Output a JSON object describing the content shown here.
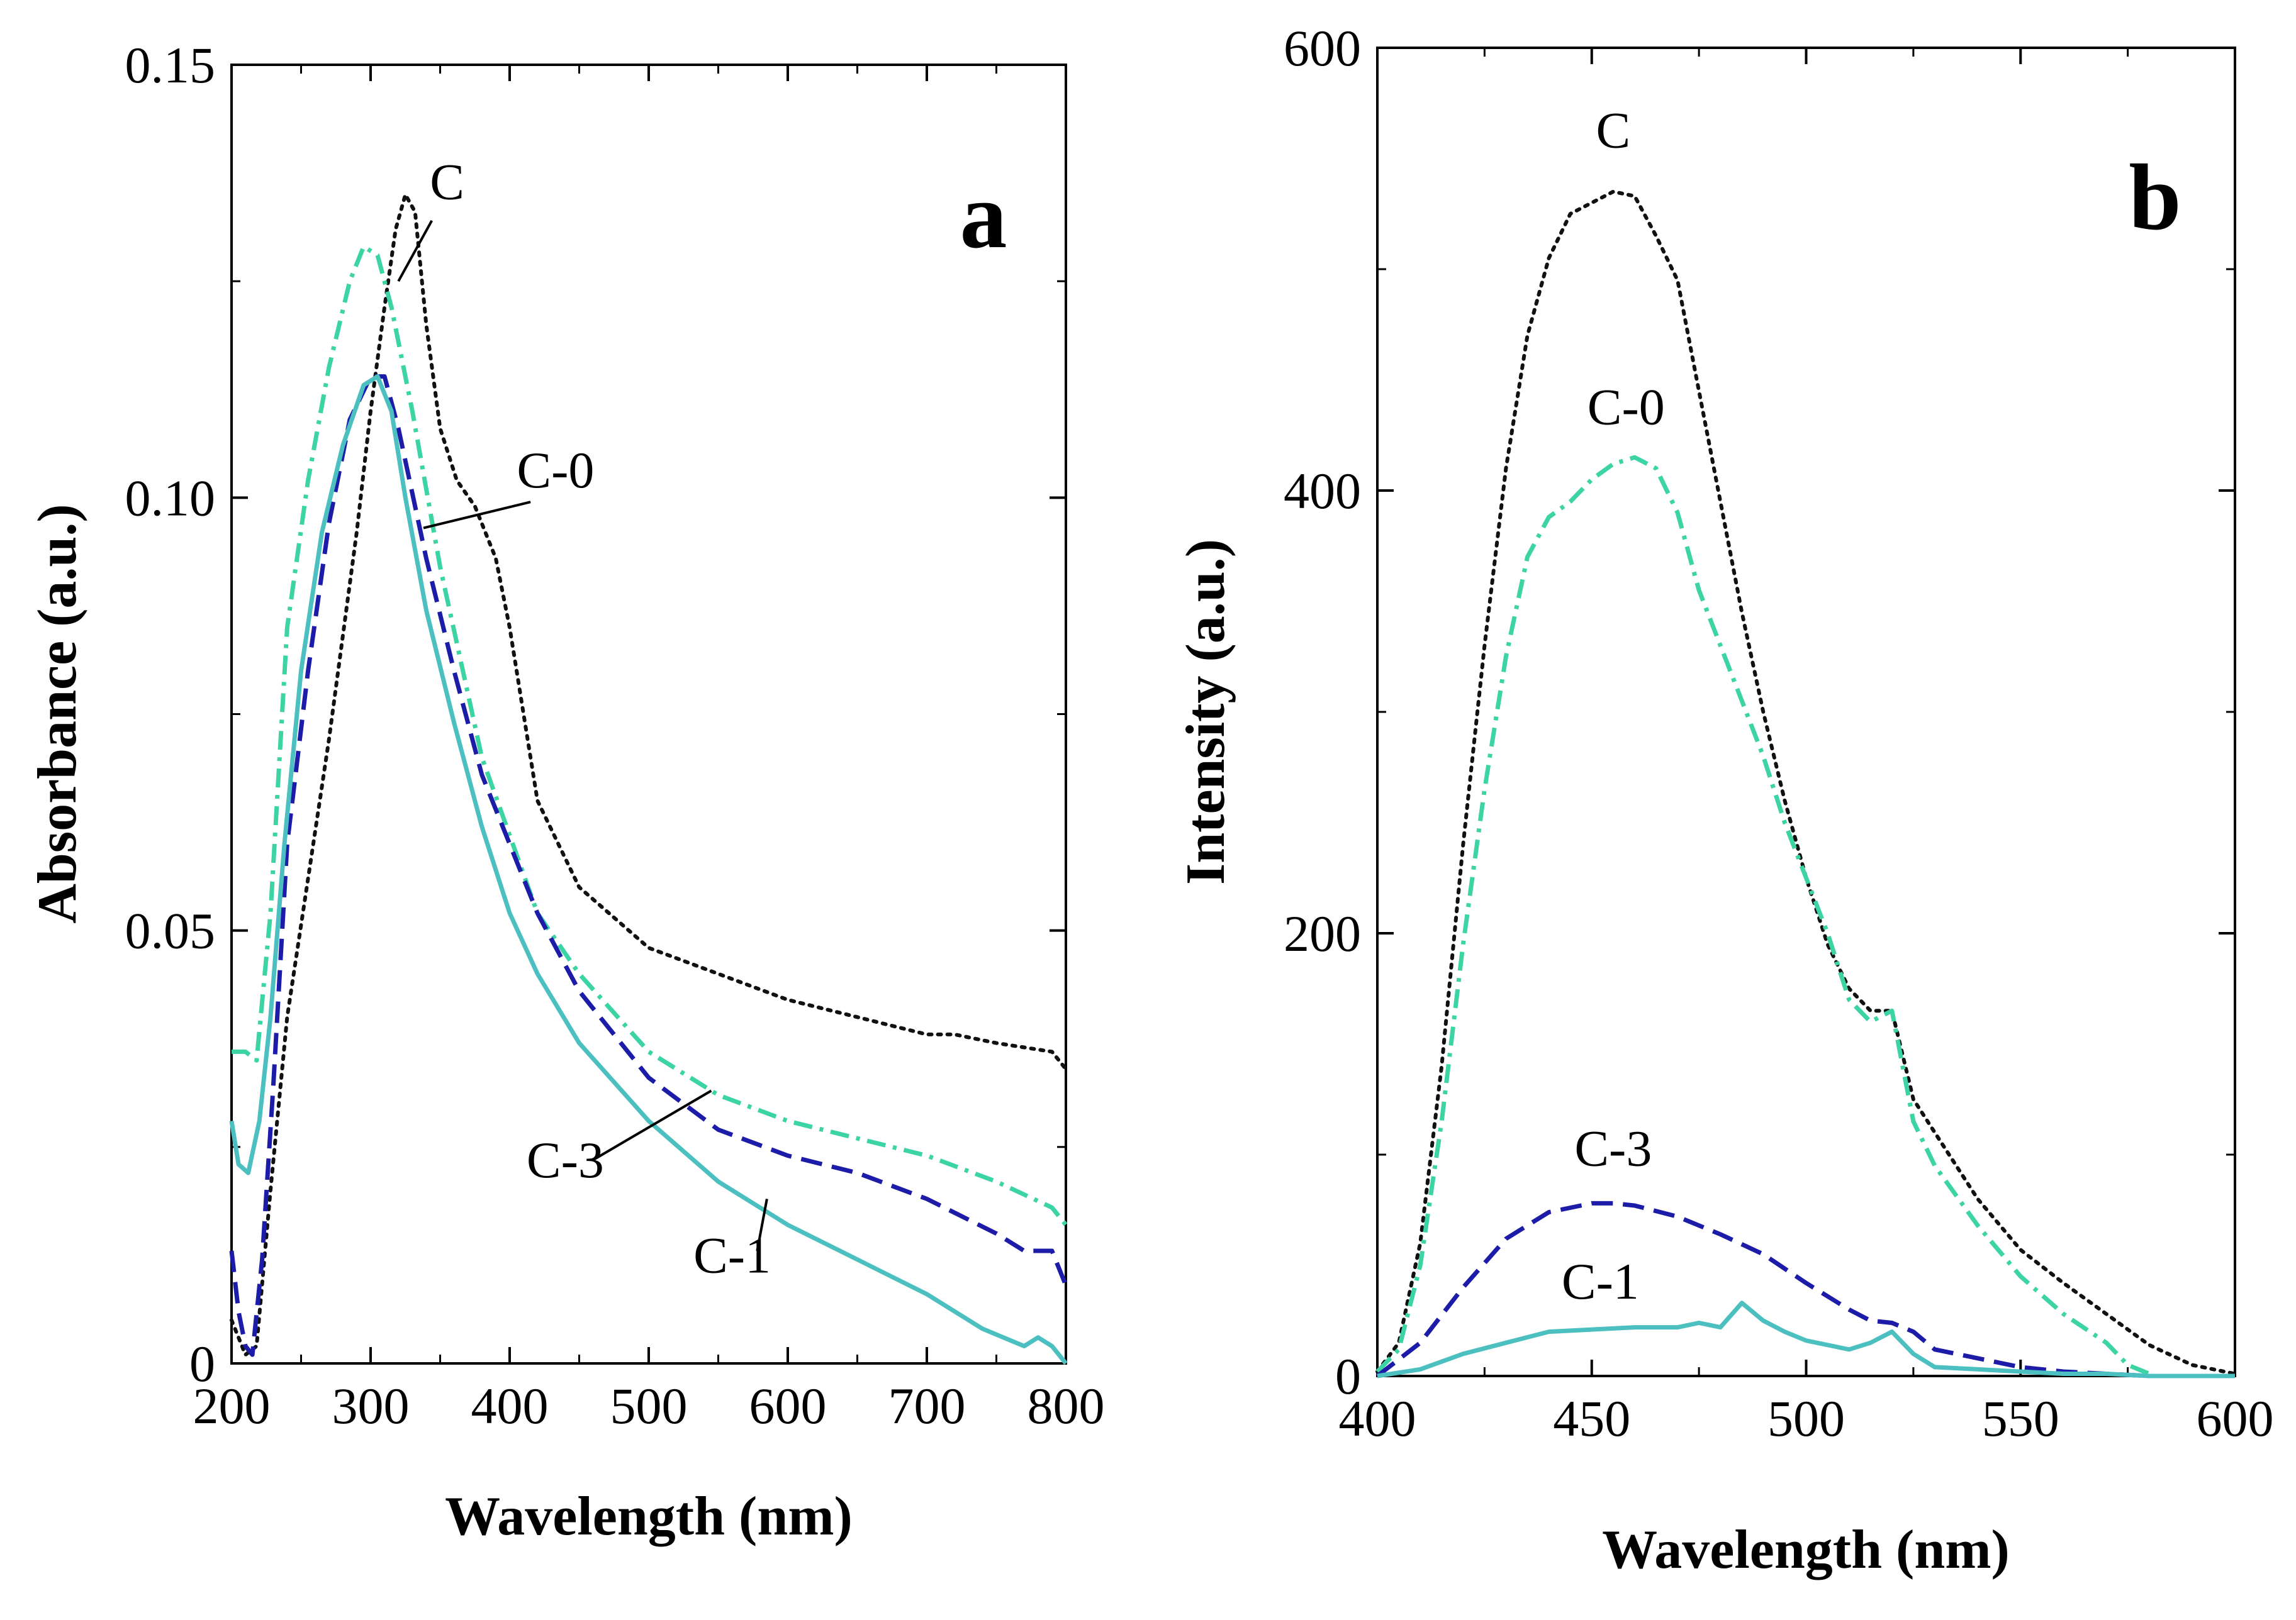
{
  "chart_data": [
    {
      "type": "line",
      "panel": "a",
      "xlabel": "Wavelength (nm)",
      "ylabel": "Absorbance (a.u.)",
      "xlim": [
        200,
        800
      ],
      "ylim": [
        0,
        0.15
      ],
      "xticks": [
        200,
        300,
        400,
        500,
        600,
        700,
        800
      ],
      "xtick_labels": [
        "200",
        "300",
        "400",
        "500",
        "600",
        "700",
        "800"
      ],
      "yticks": [
        0,
        0.05,
        0.1,
        0.15
      ],
      "ytick_labels": [
        "0",
        "0.05",
        "0.10",
        "0.15"
      ],
      "series": [
        {
          "name": "C",
          "color": "#111111",
          "style": "dotted",
          "x": [
            200,
            210,
            218,
            228,
            240,
            255,
            270,
            290,
            300,
            310,
            318,
            325,
            332,
            340,
            350,
            362,
            375,
            390,
            400,
            420,
            450,
            500,
            550,
            600,
            650,
            700,
            720,
            750,
            790,
            800
          ],
          "y": [
            0.005,
            0.001,
            0.002,
            0.02,
            0.04,
            0.056,
            0.072,
            0.096,
            0.11,
            0.122,
            0.131,
            0.135,
            0.133,
            0.12,
            0.108,
            0.102,
            0.099,
            0.093,
            0.085,
            0.065,
            0.055,
            0.048,
            0.045,
            0.042,
            0.04,
            0.038,
            0.038,
            0.037,
            0.036,
            0.034
          ]
        },
        {
          "name": "C-0",
          "color": "#3cd3a5",
          "style": "dashdot",
          "x": [
            200,
            210,
            218,
            228,
            240,
            255,
            270,
            285,
            295,
            305,
            315,
            330,
            350,
            380,
            420,
            450,
            500,
            550,
            600,
            650,
            700,
            750,
            790,
            800
          ],
          "y": [
            0.036,
            0.036,
            0.035,
            0.052,
            0.085,
            0.102,
            0.115,
            0.125,
            0.129,
            0.128,
            0.122,
            0.11,
            0.092,
            0.07,
            0.052,
            0.045,
            0.036,
            0.031,
            0.028,
            0.026,
            0.024,
            0.021,
            0.018,
            0.016
          ]
        },
        {
          "name": "C-3",
          "color": "#1c1ca8",
          "style": "dashed",
          "x": [
            200,
            205,
            210,
            215,
            222,
            230,
            240,
            255,
            270,
            285,
            300,
            310,
            320,
            340,
            360,
            380,
            420,
            450,
            500,
            550,
            600,
            650,
            700,
            750,
            770,
            790,
            800
          ],
          "y": [
            0.013,
            0.006,
            0.002,
            0.001,
            0.012,
            0.032,
            0.06,
            0.08,
            0.097,
            0.109,
            0.114,
            0.114,
            0.108,
            0.093,
            0.08,
            0.068,
            0.052,
            0.043,
            0.033,
            0.027,
            0.024,
            0.022,
            0.019,
            0.015,
            0.013,
            0.013,
            0.009
          ]
        },
        {
          "name": "C-1",
          "color": "#4cc0c0",
          "style": "solid",
          "x": [
            200,
            205,
            212,
            220,
            228,
            238,
            250,
            265,
            280,
            295,
            305,
            315,
            325,
            340,
            360,
            380,
            400,
            420,
            450,
            500,
            550,
            600,
            650,
            700,
            740,
            770,
            780,
            790,
            800
          ],
          "y": [
            0.028,
            0.023,
            0.022,
            0.028,
            0.04,
            0.06,
            0.08,
            0.096,
            0.106,
            0.113,
            0.114,
            0.11,
            0.1,
            0.087,
            0.074,
            0.062,
            0.052,
            0.045,
            0.037,
            0.028,
            0.021,
            0.016,
            0.012,
            0.008,
            0.004,
            0.002,
            0.003,
            0.002,
            0.0
          ]
        }
      ],
      "annotations": [
        {
          "text": "C",
          "series": "C"
        },
        {
          "text": "C-0",
          "series": "C-0"
        },
        {
          "text": "C-3",
          "series": "C-3"
        },
        {
          "text": "C-1",
          "series": "C-1"
        }
      ]
    },
    {
      "type": "line",
      "panel": "b",
      "xlabel": "Wavelength (nm)",
      "ylabel": "Intensity (a.u.)",
      "xlim": [
        400,
        600
      ],
      "ylim": [
        0,
        600
      ],
      "xticks": [
        400,
        450,
        500,
        550,
        600
      ],
      "xtick_labels": [
        "400",
        "450",
        "500",
        "550",
        "600"
      ],
      "yticks": [
        0,
        200,
        400,
        600
      ],
      "ytick_labels": [
        "0",
        "200",
        "400",
        "600"
      ],
      "series": [
        {
          "name": "C",
          "color": "#111111",
          "style": "dotted",
          "x": [
            400,
            405,
            410,
            415,
            420,
            425,
            430,
            435,
            440,
            445,
            450,
            455,
            460,
            465,
            470,
            475,
            480,
            485,
            490,
            495,
            500,
            505,
            510,
            515,
            520,
            525,
            530,
            540,
            550,
            560,
            570,
            580,
            590,
            600
          ],
          "y": [
            2,
            15,
            60,
            140,
            240,
            330,
            410,
            470,
            505,
            525,
            530,
            535,
            533,
            515,
            495,
            445,
            395,
            345,
            300,
            260,
            225,
            195,
            175,
            165,
            165,
            125,
            110,
            80,
            57,
            42,
            28,
            14,
            5,
            1
          ]
        },
        {
          "name": "C-0",
          "color": "#3cd3a5",
          "style": "dashdot",
          "x": [
            400,
            405,
            410,
            415,
            420,
            425,
            430,
            435,
            440,
            445,
            450,
            455,
            460,
            465,
            470,
            475,
            480,
            485,
            490,
            495,
            500,
            505,
            510,
            515,
            520,
            525,
            530,
            540,
            550,
            560,
            570,
            575,
            580
          ],
          "y": [
            2,
            12,
            50,
            115,
            195,
            265,
            325,
            370,
            388,
            395,
            405,
            412,
            415,
            410,
            390,
            355,
            330,
            305,
            280,
            250,
            225,
            200,
            170,
            160,
            165,
            115,
            95,
            68,
            45,
            28,
            15,
            5,
            1
          ]
        },
        {
          "name": "C-3",
          "color": "#1c1ca8",
          "style": "dashed",
          "x": [
            400,
            410,
            420,
            430,
            440,
            450,
            455,
            460,
            470,
            480,
            490,
            500,
            510,
            515,
            520,
            525,
            530,
            540,
            550,
            560,
            570,
            580
          ],
          "y": [
            0,
            15,
            40,
            62,
            74,
            78,
            78,
            77,
            72,
            64,
            55,
            42,
            30,
            25,
            24,
            20,
            12,
            8,
            4,
            2,
            1,
            0
          ]
        },
        {
          "name": "C-1",
          "color": "#4cc0c0",
          "style": "solid",
          "x": [
            400,
            410,
            420,
            430,
            440,
            450,
            460,
            470,
            475,
            480,
            485,
            490,
            495,
            500,
            510,
            515,
            520,
            525,
            530,
            540,
            550,
            560,
            570,
            580,
            600
          ],
          "y": [
            0,
            3,
            10,
            15,
            20,
            21,
            22,
            22,
            24,
            22,
            33,
            25,
            20,
            16,
            12,
            15,
            20,
            10,
            4,
            3,
            2,
            1,
            1,
            0,
            0
          ]
        }
      ],
      "annotations": [
        {
          "text": "C",
          "series": "C"
        },
        {
          "text": "C-0",
          "series": "C-0"
        },
        {
          "text": "C-3",
          "series": "C-3"
        },
        {
          "text": "C-1",
          "series": "C-1"
        }
      ]
    }
  ]
}
